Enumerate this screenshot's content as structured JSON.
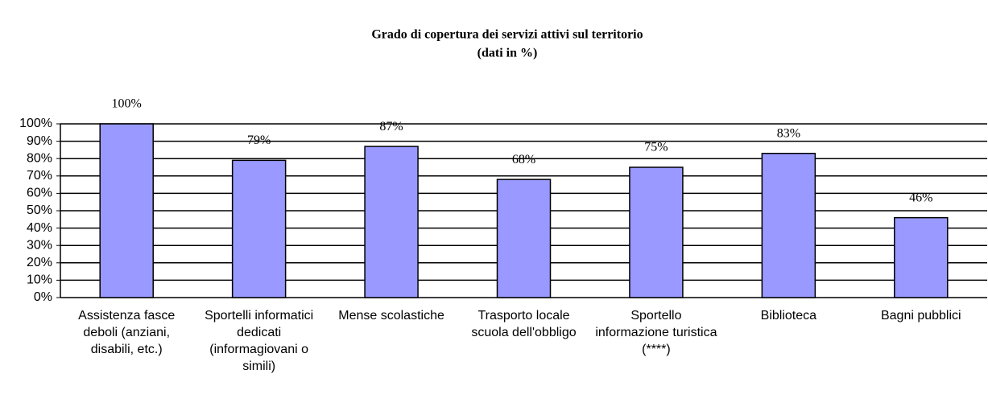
{
  "chart_data": {
    "type": "bar",
    "title": "Grado di copertura dei servizi  attivi sul territorio",
    "subtitle": "(dati in %)",
    "categories": [
      "Assistenza fasce deboli (anziani, disabili, etc.)",
      "Sportelli informatici dedicati (informagiovani o simili)",
      "Mense scolastiche",
      "Trasporto locale scuola dell'obbligo",
      "Sportello informazione turistica (****)",
      "Biblioteca",
      "Bagni pubblici"
    ],
    "values": [
      100,
      79,
      87,
      68,
      75,
      83,
      46
    ],
    "value_labels": [
      "100%",
      "79%",
      "87%",
      "68%",
      "75%",
      "83%",
      "46%"
    ],
    "color": "#9999ff",
    "ylim": [
      0,
      100
    ],
    "yticks": [
      {
        "value": 0,
        "label": "0%"
      },
      {
        "value": 10,
        "label": "10%"
      },
      {
        "value": 20,
        "label": "20%"
      },
      {
        "value": 30,
        "label": "30%"
      },
      {
        "value": 40,
        "label": "40%"
      },
      {
        "value": 50,
        "label": "50%"
      },
      {
        "value": 60,
        "label": "60%"
      },
      {
        "value": 70,
        "label": "70%"
      },
      {
        "value": 80,
        "label": "80%"
      },
      {
        "value": 90,
        "label": "90%"
      },
      {
        "value": 100,
        "label": "100%"
      }
    ],
    "grid": true
  }
}
